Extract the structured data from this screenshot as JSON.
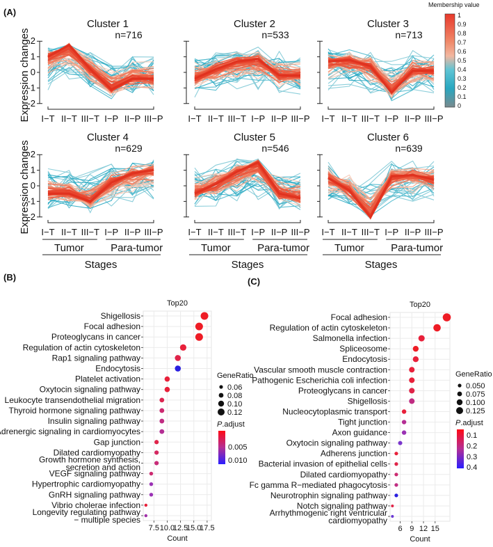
{
  "figure_labels": {
    "a": "(A)",
    "b": "(B)",
    "c": "(C)"
  },
  "chart_data": [
    {
      "type": "line",
      "panel": "A",
      "ylabel": "Expression changes",
      "xlabel": "Stages",
      "groups": [
        "Tumor",
        "Para-tumor"
      ],
      "categories": [
        "I−T",
        "II−T",
        "III−T",
        "I−P",
        "II−P",
        "III−P"
      ],
      "yticks": [
        "-2",
        "-1",
        "0",
        "1",
        "2"
      ],
      "ylim": [
        -2,
        2
      ],
      "membership_legend": {
        "title": "Membership value",
        "ticks": [
          "1",
          "0.9",
          "0.8",
          "0.7",
          "0.6",
          "0.5",
          "0.4",
          "0.3",
          "0.2",
          "0.1",
          "0"
        ],
        "colors": [
          "#e8392b",
          "#f08a6a",
          "#f2b7a0",
          "#5fc4d4",
          "#29a7c0",
          "#7a8a8e"
        ]
      },
      "clusters": [
        {
          "title": "Cluster 1",
          "n": "n=716",
          "center": [
            1.0,
            1.75,
            0.2,
            -1.1,
            -0.4,
            -0.4
          ]
        },
        {
          "title": "Cluster 2",
          "n": "n=533",
          "center": [
            -0.4,
            0.2,
            0.7,
            0.85,
            -0.2,
            -0.2
          ]
        },
        {
          "title": "Cluster 3",
          "n": "n=713",
          "center": [
            0.7,
            0.8,
            0.4,
            -1.3,
            0.1,
            0.1
          ]
        },
        {
          "title": "Cluster 4",
          "n": "n=629",
          "center": [
            -0.5,
            -0.5,
            -1.0,
            0.2,
            0.8,
            1.0
          ]
        },
        {
          "title": "Cluster 5",
          "n": "n=546",
          "center": [
            -0.5,
            0.1,
            0.9,
            1.5,
            -0.5,
            -0.8
          ]
        },
        {
          "title": "Cluster 6",
          "n": "n=639",
          "center": [
            0.5,
            -0.3,
            -2.0,
            0.6,
            0.7,
            0.4
          ]
        }
      ]
    },
    {
      "type": "scatter",
      "panel": "B",
      "title": "Top20",
      "xlabel": "Count",
      "xticks": [
        "7.5",
        "10.0",
        "12.5",
        "15.0",
        "17.5"
      ],
      "xtick_values": [
        7.5,
        10.0,
        12.5,
        15.0,
        17.5
      ],
      "xlim": [
        5.5,
        18.3
      ],
      "size_legend": {
        "title": "GeneRatio",
        "labels": [
          "0.06",
          "0.08",
          "0.10",
          "0.12"
        ]
      },
      "color_legend": {
        "title_italic": "P",
        "title_rest": ".adjust",
        "labels": [
          "0.005",
          "0.010"
        ]
      },
      "terms": [
        {
          "label": "Shigellosis",
          "count": 17,
          "color": "#ee1c25",
          "size": 5.5
        },
        {
          "label": "Focal adhesion",
          "count": 16,
          "color": "#ee1c25",
          "size": 5.5
        },
        {
          "label": "Proteoglycans in cancer",
          "count": 16,
          "color": "#ee1c25",
          "size": 5.5
        },
        {
          "label": "Regulation of actin cytoskeleton",
          "count": 13,
          "color": "#e8203a",
          "size": 4.6
        },
        {
          "label": "Rap1 signaling pathway",
          "count": 12,
          "color": "#e0244a",
          "size": 4.3
        },
        {
          "label": "Endocytosis",
          "count": 12,
          "color": "#2a1fe0",
          "size": 4.3
        },
        {
          "label": "Platelet activation",
          "count": 10,
          "color": "#e8203a",
          "size": 3.8
        },
        {
          "label": "Oxytocin signaling pathway",
          "count": 10,
          "color": "#e8203a",
          "size": 3.8
        },
        {
          "label": "Leukocyte transendothelial migration",
          "count": 9,
          "color": "#dc2650",
          "size": 3.4
        },
        {
          "label": "Thyroid hormone signaling pathway",
          "count": 9,
          "color": "#cc2a70",
          "size": 3.4
        },
        {
          "label": "Insulin signaling pathway",
          "count": 9,
          "color": "#c02c82",
          "size": 3.4
        },
        {
          "label": "Adrenergic signaling in cardiomyocytes",
          "count": 9,
          "color": "#b42e94",
          "size": 3.4
        },
        {
          "label": "Gap junction",
          "count": 8,
          "color": "#e0244a",
          "size": 3.1
        },
        {
          "label": "Dilated cardiomyopathy",
          "count": 8,
          "color": "#d42860",
          "size": 3.1
        },
        {
          "label": "Growth hormone synthesis, secretion and action",
          "count": 8,
          "color": "#c82c78",
          "size": 3.1
        },
        {
          "label": "VEGF signaling pathway",
          "count": 7,
          "color": "#cc2a70",
          "size": 2.7
        },
        {
          "label": "Hypertrophic cardiomyopathy",
          "count": 7,
          "color": "#9a32b4",
          "size": 2.7
        },
        {
          "label": "GnRH signaling pathway",
          "count": 7,
          "color": "#9a32b4",
          "size": 2.7
        },
        {
          "label": "Vibrio cholerae infection",
          "count": 6,
          "color": "#e8203a",
          "size": 2.2
        },
        {
          "label": "Longevity regulating pathway − multiple species",
          "count": 6,
          "color": "#a030a8",
          "size": 2.2
        }
      ]
    },
    {
      "type": "scatter",
      "panel": "C",
      "title": "Top20",
      "xlabel": "Count",
      "xticks": [
        "6",
        "9",
        "12",
        "15"
      ],
      "xtick_values": [
        6,
        9,
        12,
        15
      ],
      "xlim": [
        3.4,
        18.8
      ],
      "size_legend": {
        "title": "GeneRatio",
        "labels": [
          "0.050",
          "0.075",
          "0.100",
          "0.125"
        ]
      },
      "color_legend": {
        "title_italic": "P",
        "title_rest": ".adjust",
        "labels": [
          "0.1",
          "0.2",
          "0.3",
          "0.4"
        ]
      },
      "terms": [
        {
          "label": "Focal adhesion",
          "count": 18,
          "color": "#ee1c25",
          "size": 5.8
        },
        {
          "label": "Regulation of actin cytoskeleton",
          "count": 15.5,
          "color": "#ee1c25",
          "size": 5.3
        },
        {
          "label": "Salmonella infection",
          "count": 11.5,
          "color": "#e8203a",
          "size": 4.5
        },
        {
          "label": "Spliceosome",
          "count": 10,
          "color": "#ee1c25",
          "size": 4.2
        },
        {
          "label": "Endocytosis",
          "count": 10,
          "color": "#e8203a",
          "size": 4.2
        },
        {
          "label": "Vascular smooth muscle contraction",
          "count": 9,
          "color": "#e8203a",
          "size": 4.0
        },
        {
          "label": "Pathogenic Escherichia coli infection",
          "count": 9,
          "color": "#e8203a",
          "size": 4.0
        },
        {
          "label": "Proteoglycans in cancer",
          "count": 9,
          "color": "#e02448",
          "size": 4.0
        },
        {
          "label": "Shigellosis",
          "count": 9,
          "color": "#c02c82",
          "size": 4.0
        },
        {
          "label": "Nucleocytoplasmic transport",
          "count": 7,
          "color": "#e8203a",
          "size": 3.2
        },
        {
          "label": "Tight junction",
          "count": 7,
          "color": "#b42e94",
          "size": 3.2
        },
        {
          "label": "Axon guidance",
          "count": 7,
          "color": "#9a32b4",
          "size": 3.2
        },
        {
          "label": "Oxytocin signaling pathway",
          "count": 6,
          "color": "#7a36cc",
          "size": 3.0
        },
        {
          "label": "Adherens junction",
          "count": 5,
          "color": "#e8203a",
          "size": 2.6
        },
        {
          "label": "Bacterial invasion of epithelial cells",
          "count": 5,
          "color": "#e02448",
          "size": 2.6
        },
        {
          "label": "Dilated cardiomyopathy",
          "count": 5,
          "color": "#cc2a70",
          "size": 2.6
        },
        {
          "label": "Fc gamma R−mediated phagocytosis",
          "count": 5,
          "color": "#c02c82",
          "size": 2.6
        },
        {
          "label": "Neurotrophin signaling pathway",
          "count": 5,
          "color": "#2a1fe0",
          "size": 2.6
        },
        {
          "label": "Notch signaling pathway",
          "count": 4,
          "color": "#e02448",
          "size": 2.0
        },
        {
          "label": "Arrhythmogenic right ventricular cardiomyopathy",
          "count": 4,
          "color": "#6a38d4",
          "size": 2.0
        }
      ]
    }
  ]
}
